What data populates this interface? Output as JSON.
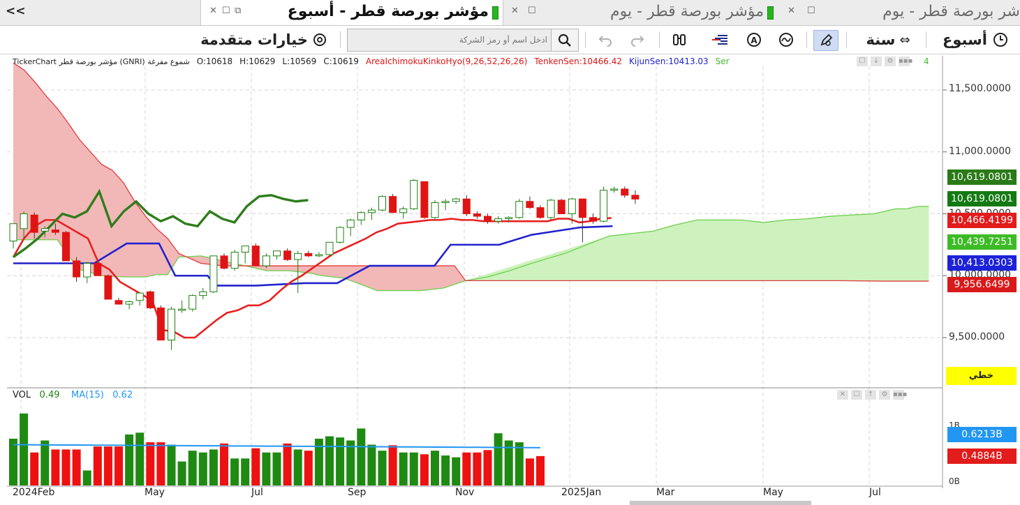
{
  "tabs": {
    "collapse": "<<",
    "tab1": {
      "title": "مؤشر بورصة قطر - أسبوع"
    },
    "tab2": {
      "title": "مؤشر بورصة قطر - يوم"
    },
    "tab3": {
      "title": "شر بورصة قطر - يوم"
    }
  },
  "toolbar": {
    "period_week": "أسبوع",
    "range_year": "سنة",
    "advanced_options": "خيارات متقدمة",
    "search_placeholder": "ادخل اسم أو رمز الشركة"
  },
  "info": {
    "source": "TickerChart مؤشر بورصة قطر (GNRI)  شموع مفرغة",
    "open": "O:10618",
    "high": "H:10629",
    "low": "L:10569",
    "close": "C:10619",
    "indicator": "AreaIchimokuKinkoHyo(9,26,52,26,26)",
    "tenkan": "TenkenSen:10466.42",
    "kijun": "KijunSen:10413.03",
    "senkou": "Ser",
    "tail": "4"
  },
  "price_axis": {
    "ticks": [
      "11,500.0000",
      "11,000.0000",
      "10,500.0000",
      "10,000.0000",
      "9,500.0000"
    ],
    "boxes": [
      {
        "text": "10,619.0801",
        "color": "#2a7a17"
      },
      {
        "text": "10,619.0801",
        "color": "#137a13"
      },
      {
        "text": "10,466.4199",
        "color": "#e21b1b"
      },
      {
        "text": "10,439.7251",
        "color": "#3dbb26"
      },
      {
        "text": "10,413.0303",
        "color": "#1d22d8"
      },
      {
        "text": "9,956.6499",
        "color": "#d91a1a"
      }
    ],
    "scale_mode": "خطي"
  },
  "volume": {
    "label": "VOL",
    "value": "0.49",
    "ma_label": "MA(15)",
    "ma_value": "0.62",
    "ticks": [
      "1B",
      "0B"
    ],
    "boxes": [
      {
        "text": "0.6213B",
        "color": "#2196f3"
      },
      {
        "text": "0.4884B",
        "color": "#e21b1b"
      }
    ]
  },
  "x_axis": [
    "2024Feb",
    "May",
    "Jul",
    "Sep",
    "Nov",
    "2025Jan",
    "Mar",
    "May",
    "Jul"
  ],
  "colors": {
    "up": "#1e7f12",
    "down": "#e01414",
    "kumo_bear": "#f0b7b7",
    "kumo_bull": "#c8f0b8",
    "kijun": "#2222cc",
    "tenkan": "#e82020",
    "chikou": "#2e7d1b"
  },
  "chart_data": {
    "type": "candlestick",
    "title": "مؤشر بورصة قطر - أسبوع",
    "ylim": [
      9200,
      11700
    ],
    "candles": [
      {
        "o": 10280,
        "h": 10420,
        "l": 10220,
        "c": 10420
      },
      {
        "o": 10380,
        "h": 10520,
        "l": 10300,
        "c": 10500
      },
      {
        "o": 10490,
        "h": 10510,
        "l": 10300,
        "c": 10350
      },
      {
        "o": 10360,
        "h": 10400,
        "l": 10310,
        "c": 10380
      },
      {
        "o": 10370,
        "h": 10420,
        "l": 10330,
        "c": 10350
      },
      {
        "o": 10350,
        "h": 10360,
        "l": 10120,
        "c": 10120
      },
      {
        "o": 10120,
        "h": 10150,
        "l": 9950,
        "c": 9990
      },
      {
        "o": 9990,
        "h": 10110,
        "l": 9940,
        "c": 10100
      },
      {
        "o": 10100,
        "h": 10120,
        "l": 10000,
        "c": 10000
      },
      {
        "o": 10000,
        "h": 10010,
        "l": 9810,
        "c": 9810
      },
      {
        "o": 9800,
        "h": 9820,
        "l": 9780,
        "c": 9770
      },
      {
        "o": 9770,
        "h": 9800,
        "l": 9730,
        "c": 9790
      },
      {
        "o": 9800,
        "h": 9850,
        "l": 9760,
        "c": 9860
      },
      {
        "o": 9870,
        "h": 9880,
        "l": 9730,
        "c": 9740
      },
      {
        "o": 9740,
        "h": 9760,
        "l": 9480,
        "c": 9480
      },
      {
        "o": 9480,
        "h": 9750,
        "l": 9400,
        "c": 9730
      },
      {
        "o": 9720,
        "h": 9800,
        "l": 9700,
        "c": 9730
      },
      {
        "o": 9730,
        "h": 9850,
        "l": 9710,
        "c": 9840
      },
      {
        "o": 9840,
        "h": 9900,
        "l": 9810,
        "c": 9870
      },
      {
        "o": 9870,
        "h": 10160,
        "l": 9860,
        "c": 10160
      },
      {
        "o": 10160,
        "h": 10180,
        "l": 10050,
        "c": 10060
      },
      {
        "o": 10060,
        "h": 10210,
        "l": 10040,
        "c": 10190
      },
      {
        "o": 10190,
        "h": 10220,
        "l": 10100,
        "c": 10240
      },
      {
        "o": 10240,
        "h": 10260,
        "l": 10080,
        "c": 10080
      },
      {
        "o": 10080,
        "h": 10180,
        "l": 10060,
        "c": 10160
      },
      {
        "o": 10160,
        "h": 10200,
        "l": 10130,
        "c": 10200
      },
      {
        "o": 10200,
        "h": 10220,
        "l": 10120,
        "c": 10130
      },
      {
        "o": 10130,
        "h": 10200,
        "l": 9860,
        "c": 10180
      },
      {
        "o": 10180,
        "h": 10200,
        "l": 10150,
        "c": 10160
      },
      {
        "o": 10160,
        "h": 10190,
        "l": 10150,
        "c": 10170
      },
      {
        "o": 10170,
        "h": 10270,
        "l": 10160,
        "c": 10270
      },
      {
        "o": 10270,
        "h": 10400,
        "l": 10260,
        "c": 10390
      },
      {
        "o": 10390,
        "h": 10460,
        "l": 10320,
        "c": 10450
      },
      {
        "o": 10450,
        "h": 10520,
        "l": 10410,
        "c": 10510
      },
      {
        "o": 10510,
        "h": 10550,
        "l": 10450,
        "c": 10530
      },
      {
        "o": 10530,
        "h": 10650,
        "l": 10520,
        "c": 10640
      },
      {
        "o": 10640,
        "h": 10660,
        "l": 10510,
        "c": 10510
      },
      {
        "o": 10510,
        "h": 10560,
        "l": 10460,
        "c": 10540
      },
      {
        "o": 10540,
        "h": 10780,
        "l": 10530,
        "c": 10770
      },
      {
        "o": 10760,
        "h": 10760,
        "l": 10460,
        "c": 10470
      },
      {
        "o": 10470,
        "h": 10610,
        "l": 10450,
        "c": 10590
      },
      {
        "o": 10590,
        "h": 10620,
        "l": 10530,
        "c": 10600
      },
      {
        "o": 10600,
        "h": 10630,
        "l": 10580,
        "c": 10620
      },
      {
        "o": 10620,
        "h": 10650,
        "l": 10480,
        "c": 10500
      },
      {
        "o": 10500,
        "h": 10520,
        "l": 10460,
        "c": 10480
      },
      {
        "o": 10480,
        "h": 10500,
        "l": 10420,
        "c": 10440
      },
      {
        "o": 10440,
        "h": 10480,
        "l": 10420,
        "c": 10460
      },
      {
        "o": 10460,
        "h": 10480,
        "l": 10430,
        "c": 10470
      },
      {
        "o": 10470,
        "h": 10620,
        "l": 10460,
        "c": 10600
      },
      {
        "o": 10600,
        "h": 10640,
        "l": 10540,
        "c": 10550
      },
      {
        "o": 10550,
        "h": 10570,
        "l": 10460,
        "c": 10470
      },
      {
        "o": 10470,
        "h": 10620,
        "l": 10450,
        "c": 10610
      },
      {
        "o": 10610,
        "h": 10620,
        "l": 10500,
        "c": 10500
      },
      {
        "o": 10500,
        "h": 10630,
        "l": 10420,
        "c": 10620
      },
      {
        "o": 10620,
        "h": 10620,
        "l": 10270,
        "c": 10470
      },
      {
        "o": 10470,
        "h": 10500,
        "l": 10420,
        "c": 10440
      },
      {
        "o": 10440,
        "h": 10720,
        "l": 10430,
        "c": 10690
      },
      {
        "o": 10690,
        "h": 10720,
        "l": 10670,
        "c": 10700
      },
      {
        "o": 10700,
        "h": 10720,
        "l": 10630,
        "c": 10650
      },
      {
        "o": 10650,
        "h": 10690,
        "l": 10580,
        "c": 10619
      }
    ],
    "tenkan": [
      [
        0,
        10150
      ],
      [
        1,
        10300
      ],
      [
        2,
        10400
      ],
      [
        3,
        10450
      ],
      [
        4,
        10450
      ],
      [
        5,
        10400
      ],
      [
        6,
        10350
      ],
      [
        7,
        10300
      ],
      [
        8,
        10100
      ],
      [
        9,
        10050
      ],
      [
        10,
        9950
      ],
      [
        11,
        9900
      ],
      [
        12,
        9850
      ],
      [
        13,
        9800
      ],
      [
        14,
        9560
      ],
      [
        15,
        9550
      ],
      [
        16,
        9500
      ],
      [
        17,
        9500
      ],
      [
        18,
        9570
      ],
      [
        19,
        9640
      ],
      [
        20,
        9700
      ],
      [
        21,
        9720
      ],
      [
        22,
        9760
      ],
      [
        23,
        9760
      ],
      [
        24,
        9800
      ],
      [
        25,
        9880
      ],
      [
        26,
        9950
      ],
      [
        27,
        10000
      ],
      [
        28,
        10060
      ],
      [
        29,
        10120
      ],
      [
        30,
        10180
      ],
      [
        31,
        10220
      ],
      [
        32,
        10260
      ],
      [
        33,
        10300
      ],
      [
        34,
        10350
      ],
      [
        35,
        10380
      ],
      [
        36,
        10420
      ],
      [
        37,
        10430
      ],
      [
        38,
        10440
      ],
      [
        39,
        10450
      ],
      [
        40,
        10450
      ],
      [
        41,
        10460
      ],
      [
        42,
        10450
      ],
      [
        43,
        10450
      ],
      [
        44,
        10440
      ],
      [
        45,
        10440
      ],
      [
        46,
        10440
      ],
      [
        47,
        10440
      ],
      [
        48,
        10440
      ],
      [
        49,
        10440
      ],
      [
        50,
        10440
      ],
      [
        51,
        10460
      ],
      [
        52,
        10460
      ],
      [
        53,
        10430
      ],
      [
        54,
        10440
      ],
      [
        55,
        10460
      ],
      [
        56,
        10466
      ]
    ],
    "kijun": [
      [
        0,
        10100
      ],
      [
        10,
        10100
      ],
      [
        14,
        10260
      ],
      [
        18,
        10260
      ],
      [
        20,
        10000
      ],
      [
        24,
        10000
      ],
      [
        25,
        9920
      ],
      [
        30,
        9920
      ],
      [
        36,
        9940
      ],
      [
        40,
        9940
      ],
      [
        44,
        10080
      ],
      [
        48,
        10080
      ],
      [
        52,
        10080
      ],
      [
        54,
        10250
      ],
      [
        60,
        10250
      ],
      [
        64,
        10330
      ],
      [
        70,
        10390
      ],
      [
        74,
        10400
      ]
    ]
  }
}
